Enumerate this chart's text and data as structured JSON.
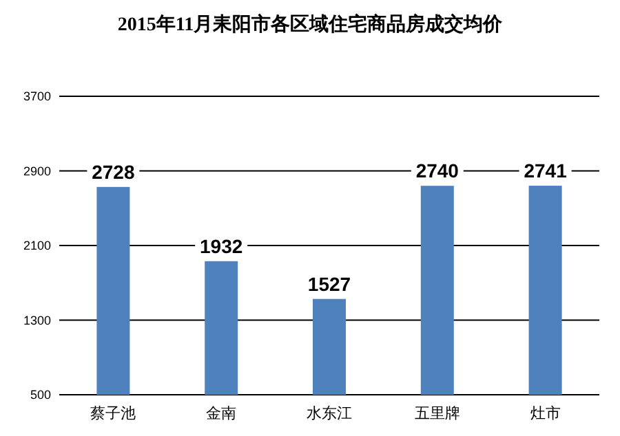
{
  "chart_data": {
    "type": "bar",
    "title": "2015年11月耒阳市各区域住宅商品房成交均价",
    "categories": [
      "蔡子池",
      "金南",
      "水东江",
      "五里牌",
      "灶市"
    ],
    "values": [
      2728,
      1932,
      1527,
      2740,
      2741
    ],
    "color": "#4f81bd",
    "ylim": [
      500,
      3700
    ],
    "yticks": [
      500,
      1300,
      2100,
      2900,
      3700
    ],
    "grid": "y",
    "data_labels": true
  }
}
